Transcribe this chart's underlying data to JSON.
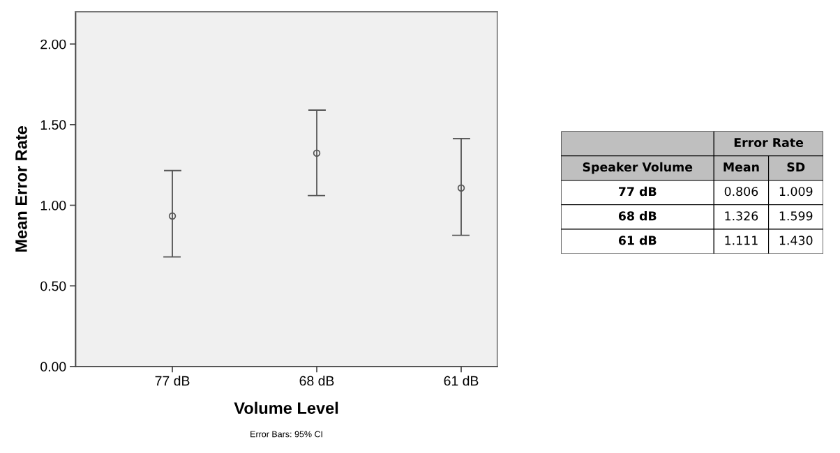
{
  "chart_data": [
    {
      "type": "scatter",
      "xlabel": "Volume Level",
      "ylabel": "Mean Error Rate",
      "categories": [
        "77 dB",
        "68 dB",
        "61 dB"
      ],
      "color": "#555555",
      "values": [
        0.933,
        1.323,
        1.107
      ],
      "errors": [
        [
          0.68,
          1.215
        ],
        [
          1.06,
          1.59
        ],
        [
          0.814,
          1.413
        ]
      ],
      "marker": "circle",
      "ylim": [
        0,
        2.2
      ],
      "yticks": [
        {
          "value": 0,
          "label": "0.00"
        },
        {
          "value": 0.5,
          "label": "0.50"
        },
        {
          "value": 1,
          "label": "1.00"
        },
        {
          "value": 1.5,
          "label": "1.50"
        },
        {
          "value": 2,
          "label": "2.00"
        }
      ],
      "grid": false,
      "annotations": [
        "Error Bars: 95% CI"
      ]
    },
    {
      "type": "other",
      "title": "Error Rate",
      "annotations": [
        "Speaker Volume",
        "Mean",
        "SD",
        "77 dB",
        "0.806",
        "1.009",
        "68 dB",
        "1.326",
        "1.599",
        "61 dB",
        "1.111",
        "1.430"
      ]
    }
  ]
}
